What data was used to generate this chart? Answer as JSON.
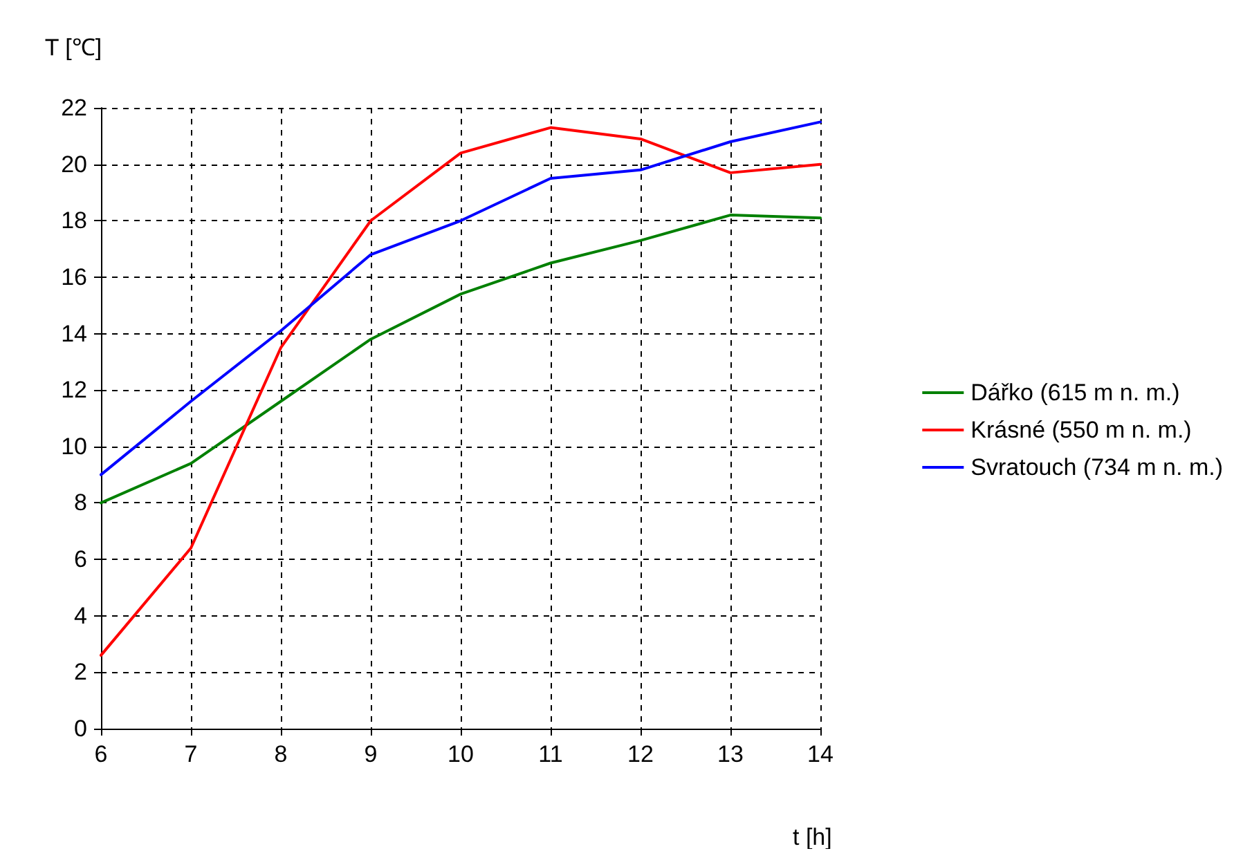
{
  "chart_data": {
    "type": "line",
    "xlabel": "t [h]",
    "ylabel": "T [℃]",
    "x": [
      6,
      7,
      8,
      9,
      10,
      11,
      12,
      13,
      14
    ],
    "series": [
      {
        "name": "Dářko (615 m n. m.)",
        "color": "#008000",
        "values": [
          8.0,
          9.4,
          11.6,
          13.8,
          15.4,
          16.5,
          17.3,
          18.2,
          18.1
        ]
      },
      {
        "name": "Krásné (550 m n. m.)",
        "color": "#ff0000",
        "values": [
          2.6,
          6.4,
          13.5,
          18.0,
          20.4,
          21.3,
          20.9,
          19.7,
          20.0
        ]
      },
      {
        "name": "Svratouch (734 m n. m.)",
        "color": "#0000ff",
        "values": [
          9.0,
          11.6,
          14.1,
          16.8,
          18.0,
          19.5,
          19.8,
          20.8,
          21.5
        ]
      }
    ],
    "xlim": [
      6,
      14
    ],
    "xticks": [
      6,
      7,
      8,
      9,
      10,
      11,
      12,
      13,
      14
    ],
    "ylim": [
      0,
      22
    ],
    "yticks": [
      0,
      2,
      4,
      6,
      8,
      10,
      12,
      14,
      16,
      18,
      20,
      22
    ],
    "grid": true,
    "legend": "right",
    "marker": "none",
    "line_style": "solid"
  }
}
